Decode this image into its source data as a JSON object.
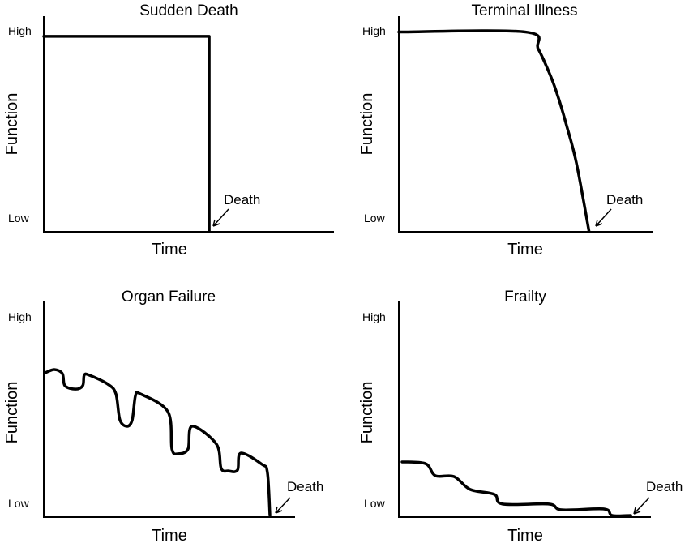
{
  "chart_data": [
    {
      "type": "line",
      "title": "Sudden Death",
      "xlabel": "Time",
      "ylabel": "Function",
      "y_tick_labels": {
        "high": "High",
        "low": "Low"
      },
      "annotation": "Death",
      "xlim": [
        0,
        100
      ],
      "ylim": [
        0,
        100
      ],
      "x": [
        0,
        57,
        57
      ],
      "y": [
        91,
        91,
        0
      ]
    },
    {
      "type": "line",
      "title": "Terminal Illness",
      "xlabel": "Time",
      "ylabel": "Function",
      "y_tick_labels": {
        "high": "High",
        "low": "Low"
      },
      "annotation": "Death",
      "xlim": [
        0,
        100
      ],
      "ylim": [
        0,
        100
      ],
      "x": [
        0,
        50,
        55,
        60,
        63,
        66,
        70,
        75
      ],
      "y": [
        93,
        93,
        85,
        72,
        62,
        50,
        32,
        0
      ]
    },
    {
      "type": "line",
      "title": "Organ Failure",
      "xlabel": "Time",
      "ylabel": "Function",
      "y_tick_labels": {
        "high": "High",
        "low": "Low"
      },
      "annotation": "Death",
      "xlim": [
        0,
        100
      ],
      "ylim": [
        0,
        100
      ],
      "x": [
        0.6,
        4.2,
        7.4,
        8.4,
        12.6,
        15.5,
        16.1,
        18.1,
        25.5,
        28.7,
        30.3,
        33.2,
        35.2,
        36.5,
        38.4,
        49.4,
        51.0,
        53.5,
        57.4,
        59.0,
        68.7,
        70.6,
        73.5,
        77.1,
        78.4,
        86.8,
        89.0,
        90.0
      ],
      "y": [
        66.8,
        68.3,
        66.4,
        60.8,
        59.2,
        60.8,
        65.7,
        65.7,
        61.5,
        57.0,
        44.9,
        41.9,
        44.9,
        56.2,
        57.0,
        48.7,
        31.3,
        29.1,
        31.3,
        41.9,
        33.6,
        22.3,
        21.1,
        21.5,
        29.4,
        24.2,
        20.4,
        0.4
      ]
    },
    {
      "type": "line",
      "title": "Frailty",
      "xlabel": "Time",
      "ylabel": "Function",
      "y_tick_labels": {
        "high": "High",
        "low": "Low"
      },
      "annotation": "Death",
      "xlim": [
        0,
        100
      ],
      "ylim": [
        0,
        100
      ],
      "x": [
        1.3,
        10.6,
        14.5,
        21.9,
        28.3,
        37.9,
        41.2,
        59.5,
        64.6,
        81.4,
        84.6,
        92.0
      ],
      "y": [
        25.3,
        24.5,
        18.9,
        18.5,
        12.5,
        10.2,
        5.7,
        5.7,
        3.0,
        3.4,
        0.4,
        0.4
      ]
    }
  ]
}
